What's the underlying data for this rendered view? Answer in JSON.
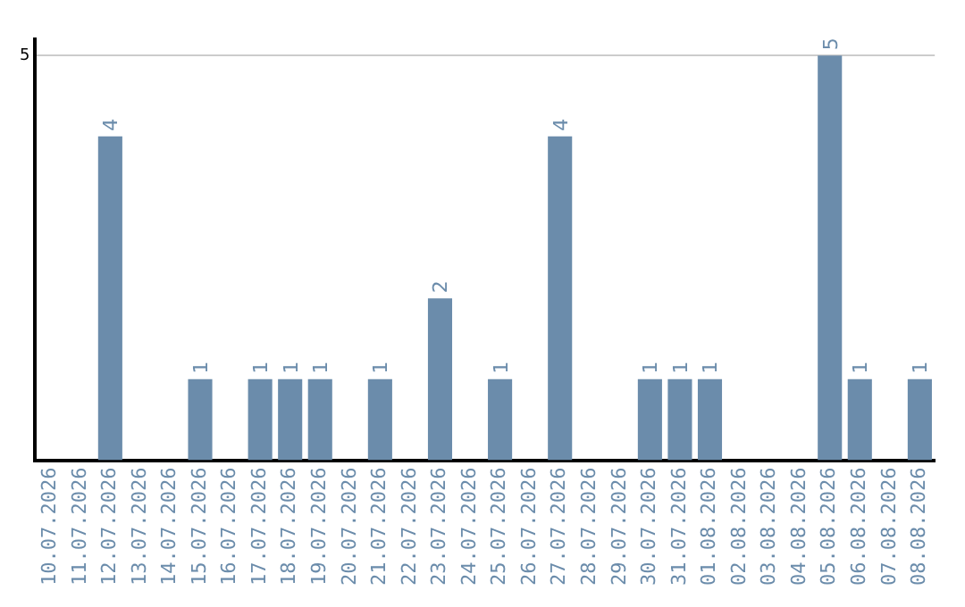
{
  "chart_data": {
    "type": "bar",
    "categories": [
      "10.07.2026",
      "11.07.2026",
      "12.07.2026",
      "13.07.2026",
      "14.07.2026",
      "15.07.2026",
      "16.07.2026",
      "17.07.2026",
      "18.07.2026",
      "19.07.2026",
      "20.07.2026",
      "21.07.2026",
      "22.07.2026",
      "23.07.2026",
      "24.07.2026",
      "25.07.2026",
      "26.07.2026",
      "27.07.2026",
      "28.07.2026",
      "29.07.2026",
      "30.07.2026",
      "31.07.2026",
      "01.08.2026",
      "02.08.2026",
      "03.08.2026",
      "04.08.2026",
      "05.08.2026",
      "06.08.2026",
      "07.08.2026",
      "08.08.2026"
    ],
    "values": [
      0,
      0,
      4,
      0,
      0,
      1,
      0,
      1,
      1,
      1,
      0,
      1,
      0,
      2,
      0,
      1,
      0,
      4,
      0,
      0,
      1,
      1,
      1,
      0,
      0,
      0,
      5,
      1,
      0,
      1
    ],
    "value_labels": [
      null,
      null,
      "4",
      null,
      null,
      "1",
      null,
      "1",
      "1",
      "1",
      null,
      "1",
      null,
      "2",
      null,
      "1",
      null,
      "4",
      null,
      null,
      "1",
      "1",
      "1",
      null,
      null,
      null,
      "5",
      "1",
      null,
      "1"
    ],
    "color": "#6b8cab",
    "ylim": [
      0,
      5.2
    ],
    "yticks": [
      5
    ],
    "grid": "y",
    "legend": false
  }
}
